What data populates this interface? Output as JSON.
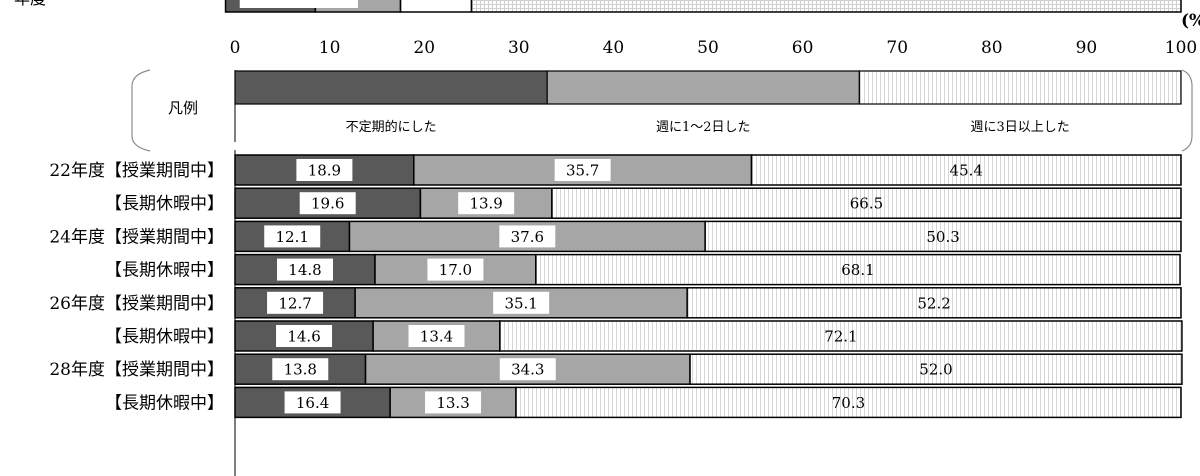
{
  "chart_data": {
    "type": "bar",
    "stacked": true,
    "orientation": "horizontal",
    "unit_partial": "(%",
    "top_partial_label": "年度",
    "xlim": [
      0,
      100
    ],
    "x_ticks": [
      "0",
      "10",
      "20",
      "30",
      "40",
      "50",
      "60",
      "70",
      "80",
      "90",
      "100"
    ],
    "legend": {
      "title": "凡例",
      "entries": [
        "不定期的にした",
        "週に1〜2日した",
        "週に3日以上した"
      ],
      "values": [
        33,
        33,
        34
      ]
    },
    "series": [
      {
        "name": "不定期的にした",
        "color": "#595959",
        "values": [
          18.9,
          19.6,
          12.1,
          14.8,
          12.7,
          14.6,
          13.8,
          16.4
        ]
      },
      {
        "name": "週に1〜2日した",
        "color": "#a6a6a6",
        "values": [
          35.7,
          13.9,
          37.6,
          17.0,
          35.1,
          13.4,
          34.3,
          13.3
        ]
      },
      {
        "name": "週に3日以上した",
        "color": "#ffffff",
        "values": [
          45.4,
          66.5,
          50.3,
          68.1,
          52.2,
          72.1,
          52.0,
          70.3
        ]
      }
    ],
    "categories": [
      "22年度【授業期間中】",
      "【長期休暇中】",
      "24年度【授業期間中】",
      "【長期休暇中】",
      "26年度【授業期間中】",
      "【長期休暇中】",
      "28年度【授業期間中】",
      "【長期休暇中】"
    ],
    "labels": [
      [
        "18.9",
        "35.7",
        "45.4"
      ],
      [
        "19.6",
        "13.9",
        "66.5"
      ],
      [
        "12.1",
        "37.6",
        "50.3"
      ],
      [
        "14.8",
        "17.0",
        "68.1"
      ],
      [
        "12.7",
        "35.1",
        "52.2"
      ],
      [
        "14.6",
        "13.4",
        "72.1"
      ],
      [
        "13.8",
        "34.3",
        "52.0"
      ],
      [
        "16.4",
        "13.3",
        "70.3"
      ]
    ],
    "top_partial_values": [
      2.5,
      6.5,
      8.5,
      25,
      75
    ]
  }
}
